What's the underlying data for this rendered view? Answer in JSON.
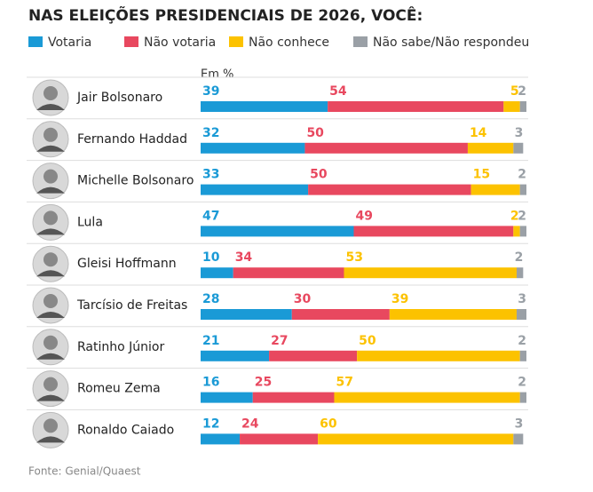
{
  "chart_data": {
    "type": "bar",
    "orientation": "horizontal",
    "stacked": true,
    "title": "NAS ELEIÇÕES PRESIDENCIAIS DE 2026, VOCÊ:",
    "unit_label": "Em %",
    "source": "Fonte: Genial/Quaest",
    "categories": [
      "Jair Bolsonaro",
      "Fernando Haddad",
      "Michelle Bolsonaro",
      "Lula",
      "Gleisi Hoffmann",
      "Tarcísio de Freitas",
      "Ratinho Júnior",
      "Romeu Zema",
      "Ronaldo Caiado"
    ],
    "series": [
      {
        "name": "Votaria",
        "color": "#1a9ad6",
        "values": [
          39,
          32,
          33,
          47,
          10,
          28,
          21,
          16,
          12
        ]
      },
      {
        "name": "Não votaria",
        "color": "#e8485f",
        "values": [
          54,
          50,
          50,
          49,
          34,
          30,
          27,
          25,
          24
        ]
      },
      {
        "name": "Não conhece",
        "color": "#fcc200",
        "values": [
          5,
          14,
          15,
          2,
          53,
          39,
          50,
          57,
          60
        ]
      },
      {
        "name": "Não sabe/Não respondeu",
        "color": "#9aa0a6",
        "values": [
          2,
          3,
          2,
          2,
          2,
          3,
          2,
          2,
          3
        ]
      }
    ]
  }
}
